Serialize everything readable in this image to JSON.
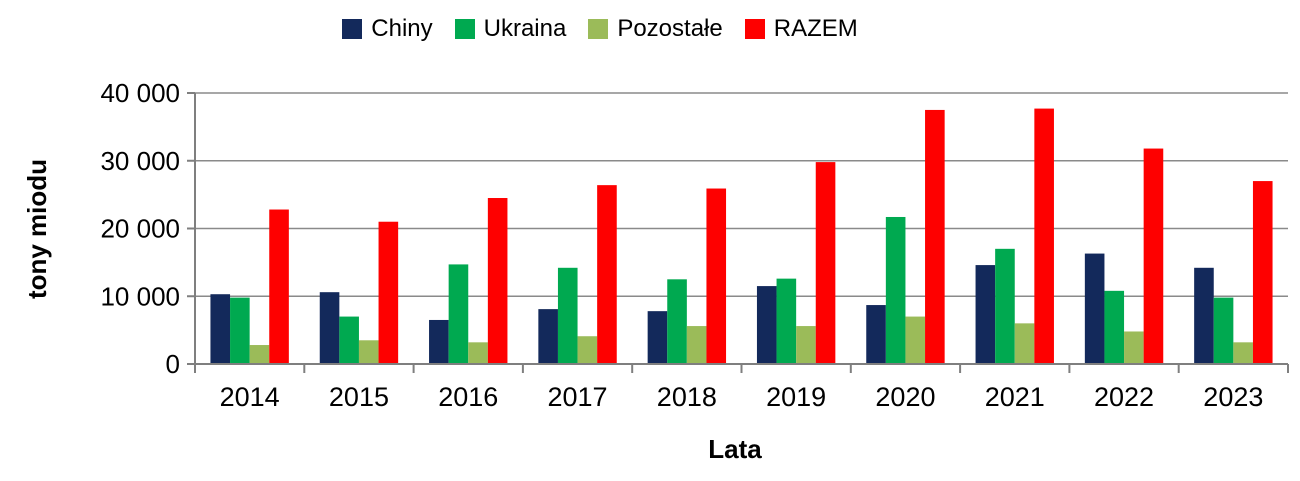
{
  "chart_data": {
    "type": "bar",
    "title": "",
    "categories": [
      "2014",
      "2015",
      "2016",
      "2017",
      "2018",
      "2019",
      "2020",
      "2021",
      "2022",
      "2023"
    ],
    "series": [
      {
        "name": "Chiny",
        "color": "#13295B",
        "values": [
          10300,
          10600,
          6500,
          8100,
          7800,
          11500,
          8700,
          14600,
          16300,
          14200
        ]
      },
      {
        "name": "Ukraina",
        "color": "#00A950",
        "values": [
          9800,
          7000,
          14700,
          14200,
          12500,
          12600,
          21700,
          17000,
          10800,
          9800
        ]
      },
      {
        "name": "Pozostałe",
        "color": "#9BBB59",
        "values": [
          2800,
          3500,
          3200,
          4100,
          5600,
          5600,
          7000,
          6000,
          4800,
          3200
        ]
      },
      {
        "name": "RAZEM",
        "color": "#FE0000",
        "values": [
          22800,
          21000,
          24500,
          26400,
          25900,
          29800,
          37500,
          37700,
          31800,
          27000
        ]
      }
    ],
    "xlabel": "Lata",
    "ylabel": "tony miodu",
    "ylim": [
      0,
      40000
    ],
    "ytick_interval": 10000,
    "ytick_labels": [
      "0",
      "10 000",
      "20 000",
      "30 000",
      "40 000"
    ],
    "grid": true,
    "legend_position": "top-center",
    "colors": {
      "gridline": "#8a8a8a",
      "axis": "#7f7f7f",
      "text": "#000000",
      "background": "#ffffff"
    }
  }
}
